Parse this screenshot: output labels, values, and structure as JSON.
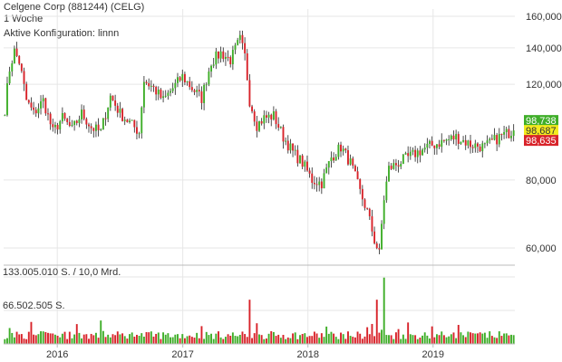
{
  "header": {
    "title": "Celgene Corp (881244) (CELG)",
    "period": "1 Woche",
    "config": "Aktive Konfiguration: linnn"
  },
  "colors": {
    "up": "#3fae29",
    "down": "#d8232a",
    "grid": "#e6e6e6",
    "axis": "#bbbbbb",
    "badge_high": "#3fae29",
    "badge_last": "#f3ea1f",
    "badge_low": "#d8232a"
  },
  "chart_data": {
    "type": "candlestick",
    "y_scale": "log",
    "ylim": [
      56000,
      165000
    ],
    "yticks": [
      60000,
      80000,
      120000,
      140000,
      160000
    ],
    "ytick_labels": [
      "60,000",
      "80,000",
      "120,000",
      "140,000",
      "160,000"
    ],
    "xticks": [
      "2016",
      "2017",
      "2018",
      "2019"
    ],
    "start": "2015-08-01",
    "weeks": 213,
    "price_path": [
      [
        0,
        108000
      ],
      [
        2,
        128000
      ],
      [
        4,
        138000
      ],
      [
        6,
        132000
      ],
      [
        9,
        112000
      ],
      [
        12,
        106000
      ],
      [
        16,
        112000
      ],
      [
        20,
        98000
      ],
      [
        24,
        104000
      ],
      [
        28,
        99000
      ],
      [
        32,
        106000
      ],
      [
        36,
        100000
      ],
      [
        40,
        98000
      ],
      [
        44,
        114000
      ],
      [
        48,
        106000
      ],
      [
        52,
        102000
      ],
      [
        56,
        98000
      ],
      [
        58,
        122000
      ],
      [
        62,
        118000
      ],
      [
        66,
        112000
      ],
      [
        70,
        118000
      ],
      [
        74,
        124000
      ],
      [
        78,
        118000
      ],
      [
        82,
        113000
      ],
      [
        86,
        132000
      ],
      [
        90,
        137000
      ],
      [
        94,
        133000
      ],
      [
        98,
        145000
      ],
      [
        100,
        135000
      ],
      [
        102,
        112000
      ],
      [
        105,
        101000
      ],
      [
        108,
        104000
      ],
      [
        112,
        105000
      ],
      [
        116,
        96000
      ],
      [
        120,
        90000
      ],
      [
        124,
        86000
      ],
      [
        128,
        80000
      ],
      [
        132,
        79000
      ],
      [
        136,
        88000
      ],
      [
        140,
        92000
      ],
      [
        144,
        86000
      ],
      [
        148,
        76000
      ],
      [
        151,
        70000
      ],
      [
        154,
        62000
      ],
      [
        156,
        58500
      ],
      [
        158,
        74000
      ],
      [
        160,
        84000
      ],
      [
        164,
        86000
      ],
      [
        170,
        89000
      ],
      [
        176,
        92000
      ],
      [
        182,
        94000
      ],
      [
        188,
        96000
      ],
      [
        194,
        93000
      ],
      [
        200,
        92000
      ],
      [
        206,
        96000
      ],
      [
        212,
        98687
      ]
    ],
    "last_price": {
      "high": "98,738",
      "last": "98,687",
      "low": "98,635"
    },
    "volume": {
      "max_label": "133.005.010 S. / 10,0 Mrd.",
      "mid_label": "66.502.505 S.",
      "max_value": 133005010,
      "mid_value": 66502505
    }
  }
}
